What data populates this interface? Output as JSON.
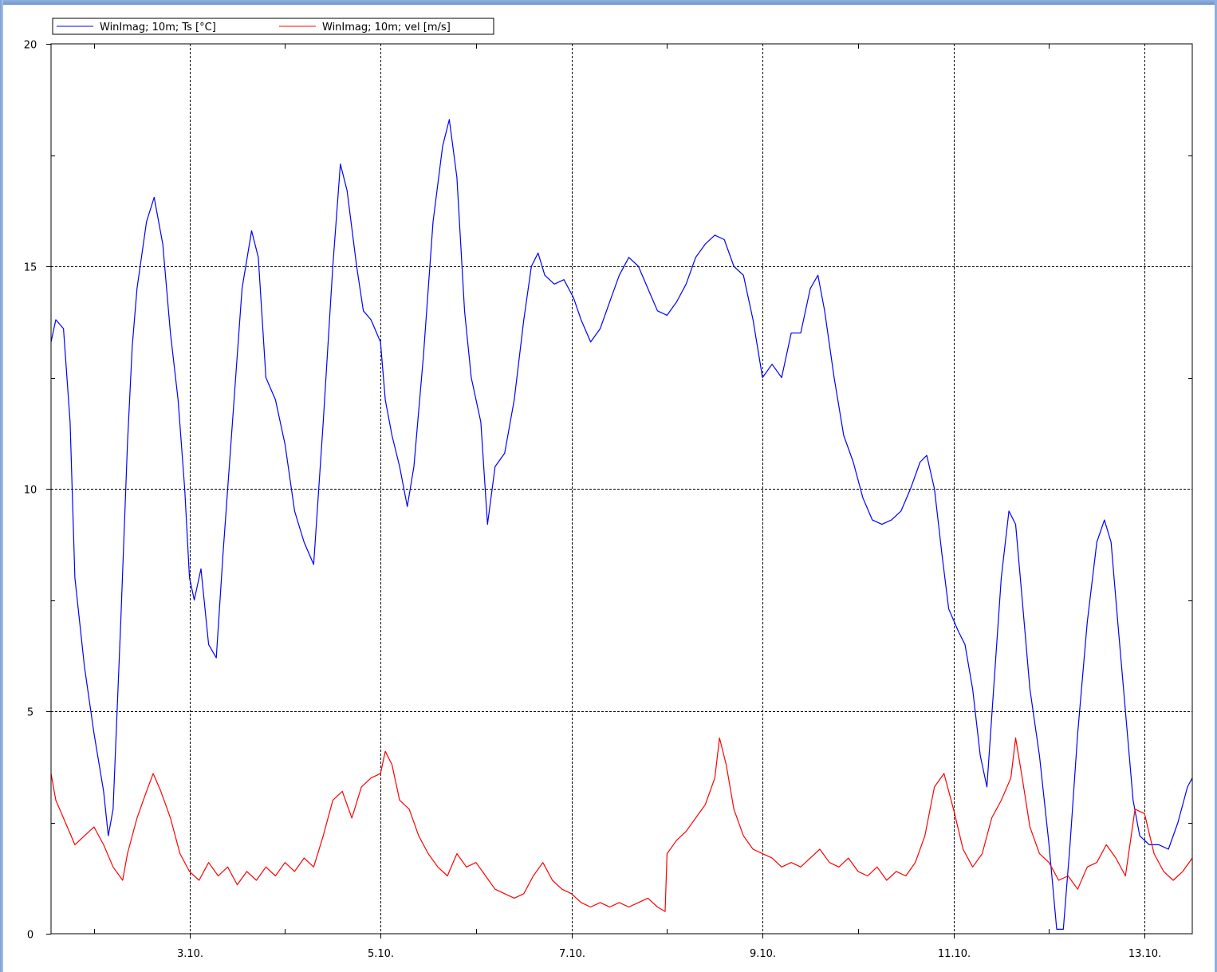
{
  "chart_data": {
    "type": "line",
    "legend_position": "top-left",
    "grid": true,
    "xlim": [
      1.55,
      13.5
    ],
    "ylim": [
      0,
      20
    ],
    "x_ticks": [
      {
        "x": 3,
        "label": "3.10."
      },
      {
        "x": 5,
        "label": "5.10."
      },
      {
        "x": 7,
        "label": "7.10."
      },
      {
        "x": 9,
        "label": "9.10."
      },
      {
        "x": 11,
        "label": "11.10."
      },
      {
        "x": 13,
        "label": "13.10."
      }
    ],
    "y_ticks": [
      {
        "y": 0,
        "label": "0"
      },
      {
        "y": 5,
        "label": "5"
      },
      {
        "y": 10,
        "label": "10"
      },
      {
        "y": 15,
        "label": "15"
      },
      {
        "y": 20,
        "label": "20"
      }
    ],
    "series": [
      {
        "name": "WinImag; 10m; Ts [°C]",
        "color": "#0000ff",
        "points": [
          [
            1.55,
            13.3
          ],
          [
            1.6,
            13.8
          ],
          [
            1.68,
            13.6
          ],
          [
            1.75,
            11.5
          ],
          [
            1.8,
            8.0
          ],
          [
            1.9,
            6.0
          ],
          [
            2.0,
            4.5
          ],
          [
            2.1,
            3.2
          ],
          [
            2.15,
            2.2
          ],
          [
            2.2,
            2.8
          ],
          [
            2.28,
            7.0
          ],
          [
            2.35,
            11.0
          ],
          [
            2.4,
            13.2
          ],
          [
            2.45,
            14.5
          ],
          [
            2.55,
            16.0
          ],
          [
            2.63,
            16.55
          ],
          [
            2.72,
            15.5
          ],
          [
            2.8,
            13.5
          ],
          [
            2.88,
            12.0
          ],
          [
            2.95,
            10.0
          ],
          [
            3.0,
            8.0
          ],
          [
            3.05,
            7.5
          ],
          [
            3.12,
            8.2
          ],
          [
            3.2,
            6.5
          ],
          [
            3.28,
            6.2
          ],
          [
            3.35,
            8.5
          ],
          [
            3.45,
            11.5
          ],
          [
            3.55,
            14.5
          ],
          [
            3.65,
            15.8
          ],
          [
            3.72,
            15.2
          ],
          [
            3.8,
            12.5
          ],
          [
            3.9,
            12.0
          ],
          [
            4.0,
            11.0
          ],
          [
            4.1,
            9.5
          ],
          [
            4.2,
            8.8
          ],
          [
            4.3,
            8.3
          ],
          [
            4.4,
            11.5
          ],
          [
            4.5,
            15.0
          ],
          [
            4.58,
            17.3
          ],
          [
            4.65,
            16.7
          ],
          [
            4.75,
            15.0
          ],
          [
            4.82,
            14.0
          ],
          [
            4.9,
            13.8
          ],
          [
            5.0,
            13.3
          ],
          [
            5.05,
            12.0
          ],
          [
            5.12,
            11.2
          ],
          [
            5.2,
            10.5
          ],
          [
            5.28,
            9.6
          ],
          [
            5.35,
            10.5
          ],
          [
            5.45,
            13.0
          ],
          [
            5.55,
            16.0
          ],
          [
            5.65,
            17.7
          ],
          [
            5.72,
            18.3
          ],
          [
            5.8,
            17.0
          ],
          [
            5.88,
            14.0
          ],
          [
            5.95,
            12.5
          ],
          [
            6.05,
            11.5
          ],
          [
            6.12,
            9.2
          ],
          [
            6.2,
            10.5
          ],
          [
            6.3,
            10.8
          ],
          [
            6.4,
            12.0
          ],
          [
            6.5,
            13.8
          ],
          [
            6.58,
            15.0
          ],
          [
            6.65,
            15.3
          ],
          [
            6.72,
            14.8
          ],
          [
            6.82,
            14.6
          ],
          [
            6.92,
            14.7
          ],
          [
            7.02,
            14.3
          ],
          [
            7.1,
            13.8
          ],
          [
            7.2,
            13.3
          ],
          [
            7.3,
            13.6
          ],
          [
            7.4,
            14.2
          ],
          [
            7.5,
            14.8
          ],
          [
            7.6,
            15.2
          ],
          [
            7.7,
            15.0
          ],
          [
            7.8,
            14.5
          ],
          [
            7.9,
            14.0
          ],
          [
            8.0,
            13.9
          ],
          [
            8.1,
            14.2
          ],
          [
            8.2,
            14.6
          ],
          [
            8.3,
            15.2
          ],
          [
            8.4,
            15.5
          ],
          [
            8.5,
            15.7
          ],
          [
            8.6,
            15.6
          ],
          [
            8.7,
            15.0
          ],
          [
            8.8,
            14.8
          ],
          [
            8.9,
            13.8
          ],
          [
            9.0,
            12.5
          ],
          [
            9.1,
            12.8
          ],
          [
            9.2,
            12.5
          ],
          [
            9.3,
            13.5
          ],
          [
            9.4,
            13.5
          ],
          [
            9.5,
            14.5
          ],
          [
            9.58,
            14.8
          ],
          [
            9.65,
            14.0
          ],
          [
            9.75,
            12.5
          ],
          [
            9.85,
            11.2
          ],
          [
            9.95,
            10.6
          ],
          [
            10.05,
            9.8
          ],
          [
            10.15,
            9.3
          ],
          [
            10.25,
            9.2
          ],
          [
            10.35,
            9.3
          ],
          [
            10.45,
            9.5
          ],
          [
            10.55,
            10.0
          ],
          [
            10.65,
            10.6
          ],
          [
            10.72,
            10.75
          ],
          [
            10.8,
            10.0
          ],
          [
            10.88,
            8.5
          ],
          [
            10.95,
            7.3
          ],
          [
            11.05,
            6.8
          ],
          [
            11.12,
            6.5
          ],
          [
            11.2,
            5.5
          ],
          [
            11.28,
            4.0
          ],
          [
            11.35,
            3.3
          ],
          [
            11.42,
            5.5
          ],
          [
            11.5,
            8.0
          ],
          [
            11.58,
            9.5
          ],
          [
            11.65,
            9.2
          ],
          [
            11.72,
            7.5
          ],
          [
            11.8,
            5.5
          ],
          [
            11.9,
            4.0
          ],
          [
            12.0,
            2.0
          ],
          [
            12.08,
            0.1
          ],
          [
            12.15,
            0.1
          ],
          [
            12.22,
            2.0
          ],
          [
            12.3,
            4.5
          ],
          [
            12.4,
            7.0
          ],
          [
            12.5,
            8.8
          ],
          [
            12.58,
            9.3
          ],
          [
            12.65,
            8.8
          ],
          [
            12.72,
            7.0
          ],
          [
            12.8,
            5.0
          ],
          [
            12.88,
            3.0
          ],
          [
            12.95,
            2.2
          ],
          [
            13.05,
            2.0
          ],
          [
            13.15,
            2.0
          ],
          [
            13.25,
            1.9
          ],
          [
            13.35,
            2.5
          ],
          [
            13.45,
            3.3
          ],
          [
            13.5,
            3.5
          ]
        ]
      },
      {
        "name": "WinImag; 10m; vel [m/s]",
        "color": "#ff0000",
        "points": [
          [
            1.55,
            3.6
          ],
          [
            1.6,
            3.0
          ],
          [
            1.7,
            2.5
          ],
          [
            1.8,
            2.0
          ],
          [
            1.9,
            2.2
          ],
          [
            2.0,
            2.4
          ],
          [
            2.1,
            2.0
          ],
          [
            2.2,
            1.5
          ],
          [
            2.3,
            1.2
          ],
          [
            2.35,
            1.8
          ],
          [
            2.45,
            2.6
          ],
          [
            2.55,
            3.2
          ],
          [
            2.62,
            3.6
          ],
          [
            2.7,
            3.2
          ],
          [
            2.8,
            2.6
          ],
          [
            2.9,
            1.8
          ],
          [
            3.0,
            1.4
          ],
          [
            3.1,
            1.2
          ],
          [
            3.2,
            1.6
          ],
          [
            3.3,
            1.3
          ],
          [
            3.4,
            1.5
          ],
          [
            3.5,
            1.1
          ],
          [
            3.6,
            1.4
          ],
          [
            3.7,
            1.2
          ],
          [
            3.8,
            1.5
          ],
          [
            3.9,
            1.3
          ],
          [
            4.0,
            1.6
          ],
          [
            4.1,
            1.4
          ],
          [
            4.2,
            1.7
          ],
          [
            4.3,
            1.5
          ],
          [
            4.4,
            2.2
          ],
          [
            4.5,
            3.0
          ],
          [
            4.6,
            3.2
          ],
          [
            4.7,
            2.6
          ],
          [
            4.8,
            3.3
          ],
          [
            4.9,
            3.5
          ],
          [
            5.0,
            3.6
          ],
          [
            5.05,
            4.1
          ],
          [
            5.12,
            3.8
          ],
          [
            5.2,
            3.0
          ],
          [
            5.3,
            2.8
          ],
          [
            5.4,
            2.2
          ],
          [
            5.5,
            1.8
          ],
          [
            5.6,
            1.5
          ],
          [
            5.7,
            1.3
          ],
          [
            5.8,
            1.8
          ],
          [
            5.9,
            1.5
          ],
          [
            6.0,
            1.6
          ],
          [
            6.1,
            1.3
          ],
          [
            6.2,
            1.0
          ],
          [
            6.3,
            0.9
          ],
          [
            6.4,
            0.8
          ],
          [
            6.5,
            0.9
          ],
          [
            6.6,
            1.3
          ],
          [
            6.7,
            1.6
          ],
          [
            6.8,
            1.2
          ],
          [
            6.9,
            1.0
          ],
          [
            7.0,
            0.9
          ],
          [
            7.1,
            0.7
          ],
          [
            7.2,
            0.6
          ],
          [
            7.3,
            0.7
          ],
          [
            7.4,
            0.6
          ],
          [
            7.5,
            0.7
          ],
          [
            7.6,
            0.6
          ],
          [
            7.7,
            0.7
          ],
          [
            7.8,
            0.8
          ],
          [
            7.9,
            0.6
          ],
          [
            7.98,
            0.5
          ],
          [
            8.0,
            1.8
          ],
          [
            8.1,
            2.1
          ],
          [
            8.2,
            2.3
          ],
          [
            8.3,
            2.6
          ],
          [
            8.4,
            2.9
          ],
          [
            8.5,
            3.5
          ],
          [
            8.55,
            4.4
          ],
          [
            8.62,
            3.8
          ],
          [
            8.7,
            2.8
          ],
          [
            8.8,
            2.2
          ],
          [
            8.9,
            1.9
          ],
          [
            9.0,
            1.8
          ],
          [
            9.1,
            1.7
          ],
          [
            9.2,
            1.5
          ],
          [
            9.3,
            1.6
          ],
          [
            9.4,
            1.5
          ],
          [
            9.5,
            1.7
          ],
          [
            9.6,
            1.9
          ],
          [
            9.7,
            1.6
          ],
          [
            9.8,
            1.5
          ],
          [
            9.9,
            1.7
          ],
          [
            10.0,
            1.4
          ],
          [
            10.1,
            1.3
          ],
          [
            10.2,
            1.5
          ],
          [
            10.3,
            1.2
          ],
          [
            10.4,
            1.4
          ],
          [
            10.5,
            1.3
          ],
          [
            10.6,
            1.6
          ],
          [
            10.7,
            2.2
          ],
          [
            10.8,
            3.3
          ],
          [
            10.9,
            3.6
          ],
          [
            11.0,
            2.8
          ],
          [
            11.1,
            1.9
          ],
          [
            11.2,
            1.5
          ],
          [
            11.3,
            1.8
          ],
          [
            11.4,
            2.6
          ],
          [
            11.5,
            3.0
          ],
          [
            11.6,
            3.5
          ],
          [
            11.65,
            4.4
          ],
          [
            11.72,
            3.5
          ],
          [
            11.8,
            2.4
          ],
          [
            11.9,
            1.8
          ],
          [
            12.0,
            1.6
          ],
          [
            12.1,
            1.2
          ],
          [
            12.2,
            1.3
          ],
          [
            12.3,
            1.0
          ],
          [
            12.4,
            1.5
          ],
          [
            12.5,
            1.6
          ],
          [
            12.6,
            2.0
          ],
          [
            12.7,
            1.7
          ],
          [
            12.8,
            1.3
          ],
          [
            12.9,
            2.8
          ],
          [
            13.0,
            2.7
          ],
          [
            13.1,
            1.8
          ],
          [
            13.2,
            1.4
          ],
          [
            13.3,
            1.2
          ],
          [
            13.4,
            1.4
          ],
          [
            13.5,
            1.7
          ]
        ]
      }
    ]
  }
}
